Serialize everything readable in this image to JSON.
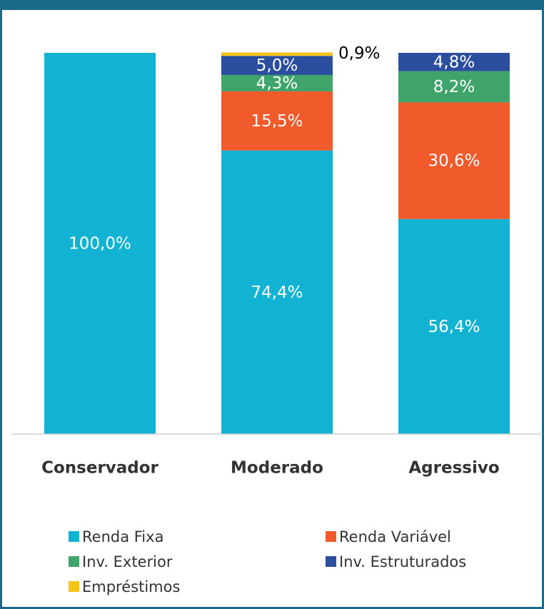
{
  "chart_data": {
    "type": "stacked_bar",
    "categories": [
      "Conservador",
      "Moderado",
      "Agressivo"
    ],
    "ylim": [
      0,
      100
    ],
    "series": [
      {
        "name": "Renda Fixa",
        "color": "#12b2d3",
        "values": [
          100.0,
          74.4,
          56.4
        ],
        "value_labels": [
          "100,0%",
          "74,4%",
          "56,4%"
        ]
      },
      {
        "name": "Renda Variável",
        "color": "#f15a2b",
        "values": [
          null,
          15.5,
          30.6
        ],
        "value_labels": [
          null,
          "15,5%",
          "30,6%"
        ]
      },
      {
        "name": "Inv. Exterior",
        "color": "#3fa46a",
        "values": [
          null,
          4.3,
          8.2
        ],
        "value_labels": [
          null,
          "4,3%",
          "8,2%"
        ]
      },
      {
        "name": "Inv. Estruturados",
        "color": "#2b4f9e",
        "values": [
          null,
          5.0,
          4.8
        ],
        "value_labels": [
          null,
          "5,0%",
          "4,8%"
        ]
      },
      {
        "name": "Empréstimos",
        "color": "#f7c21a",
        "values": [
          null,
          0.9,
          null
        ],
        "value_labels": [
          null,
          "0,9%",
          null
        ]
      }
    ]
  }
}
